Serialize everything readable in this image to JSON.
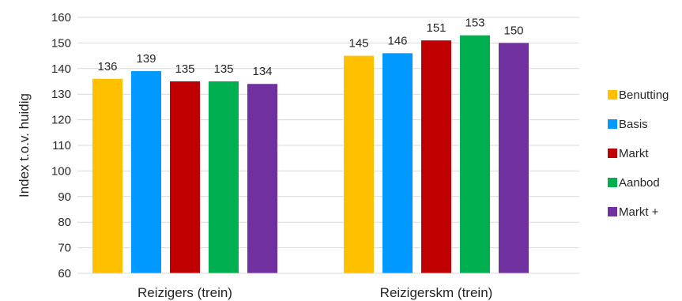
{
  "chart_data": {
    "type": "bar",
    "categories": [
      "Reizigers (trein)",
      "Reizigerskm (trein)"
    ],
    "series": [
      {
        "name": "Benutting",
        "color": "#FFC000",
        "values": [
          136,
          145
        ]
      },
      {
        "name": "Basis",
        "color": "#0099FF",
        "values": [
          139,
          146
        ]
      },
      {
        "name": "Markt",
        "color": "#C00000",
        "values": [
          135,
          151
        ]
      },
      {
        "name": "Aanbod",
        "color": "#00B050",
        "values": [
          135,
          153
        ]
      },
      {
        "name": "Markt +",
        "color": "#7030A0",
        "values": [
          134,
          150
        ]
      }
    ],
    "ylabel": "Index t.o.v. huidig",
    "ylim": [
      60,
      160
    ],
    "yticks": [
      60,
      70,
      80,
      90,
      100,
      110,
      120,
      130,
      140,
      150,
      160
    ],
    "grid": true,
    "legend": "right"
  }
}
